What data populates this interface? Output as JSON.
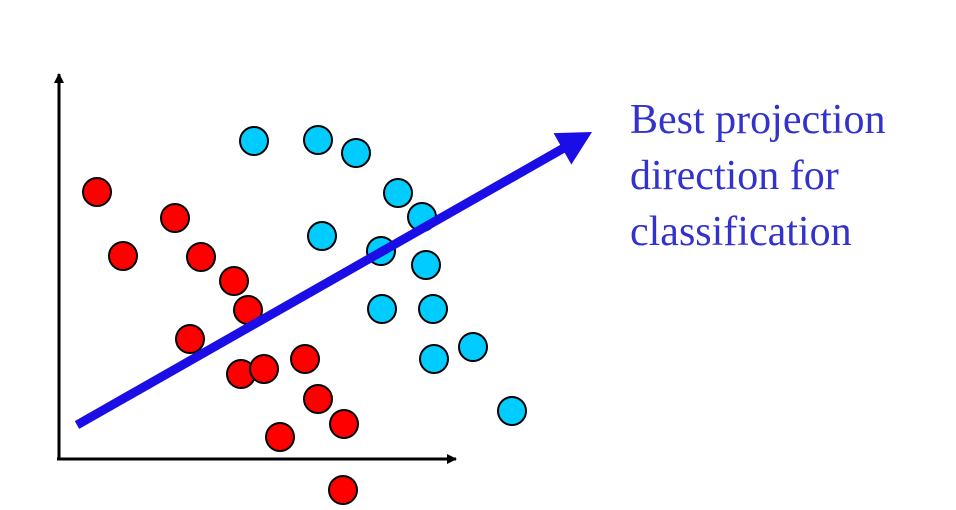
{
  "caption": {
    "lines": [
      "Best projection",
      "direction for",
      "classification"
    ]
  },
  "colors": {
    "class_a": "#ff0000",
    "class_b": "#00ccff",
    "projection_arrow": "#1a0de6",
    "caption_text": "#3333cc",
    "axes": "#000000"
  },
  "chart_data": {
    "type": "scatter",
    "series": [
      {
        "color": "#ff0000",
        "points": [
          [
            97,
            192
          ],
          [
            175,
            218
          ],
          [
            123,
            256
          ],
          [
            201,
            257
          ],
          [
            234,
            281
          ],
          [
            248,
            310
          ],
          [
            190,
            339
          ],
          [
            305,
            359
          ],
          [
            241,
            374
          ],
          [
            264,
            369
          ],
          [
            318,
            399
          ],
          [
            344,
            424
          ],
          [
            280,
            437
          ],
          [
            343,
            490
          ]
        ]
      },
      {
        "color": "#00ccff",
        "points": [
          [
            254,
            141
          ],
          [
            318,
            140
          ],
          [
            356,
            153
          ],
          [
            398,
            193
          ],
          [
            422,
            217
          ],
          [
            322,
            236
          ],
          [
            381,
            251
          ],
          [
            426,
            265
          ],
          [
            382,
            309
          ],
          [
            433,
            309
          ],
          [
            434,
            359
          ],
          [
            473,
            347
          ],
          [
            512,
            411
          ]
        ]
      }
    ],
    "projection_direction": {
      "from": [
        77,
        425
      ],
      "to": [
        592,
        132
      ]
    },
    "grid": false,
    "legend": "none"
  }
}
